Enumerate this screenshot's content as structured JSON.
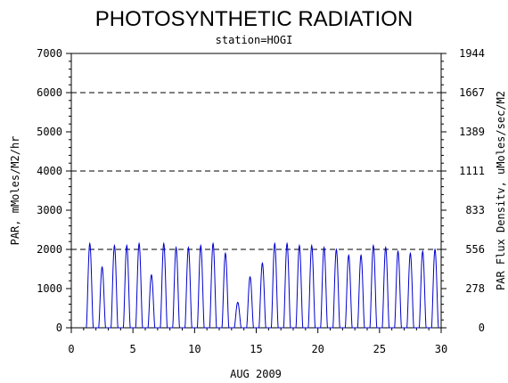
{
  "chart_data": {
    "type": "line",
    "title": "PHOTOSYNTHETIC RADIATION",
    "subtitle": "station=HOGI",
    "xlabel": "AUG 2009",
    "ylabel": "PAR, mMoles/M2/hr",
    "y2label": "PAR Flux Densitv, uMoles/sec/M2",
    "xlim": [
      0,
      30
    ],
    "ylim": [
      0,
      7000
    ],
    "x_ticks": [
      "0",
      "5",
      "10",
      "15",
      "20",
      "25",
      "30"
    ],
    "y_ticks": [
      "0",
      "1000",
      "2000",
      "3000",
      "4000",
      "5000",
      "6000",
      "7000"
    ],
    "y2_ticks": [
      "0",
      "278",
      "556",
      "833",
      "1111",
      "1389",
      "1667",
      "1944"
    ],
    "gridlines_y": [
      2000,
      4000,
      6000
    ],
    "series_color": "#0000cc",
    "series": [
      {
        "daily_peaks": [
          {
            "day": 1,
            "peak": 2150
          },
          {
            "day": 2,
            "peak": 1550
          },
          {
            "day": 3,
            "peak": 2100
          },
          {
            "day": 4,
            "peak": 2100
          },
          {
            "day": 5,
            "peak": 2150
          },
          {
            "day": 6,
            "peak": 1350
          },
          {
            "day": 7,
            "peak": 2150
          },
          {
            "day": 8,
            "peak": 2050
          },
          {
            "day": 9,
            "peak": 2050
          },
          {
            "day": 10,
            "peak": 2100
          },
          {
            "day": 11,
            "peak": 2150
          },
          {
            "day": 12,
            "peak": 1900
          },
          {
            "day": 13,
            "peak": 650
          },
          {
            "day": 14,
            "peak": 1300
          },
          {
            "day": 15,
            "peak": 1650
          },
          {
            "day": 16,
            "peak": 2150
          },
          {
            "day": 17,
            "peak": 2150
          },
          {
            "day": 18,
            "peak": 2100
          },
          {
            "day": 19,
            "peak": 2100
          },
          {
            "day": 20,
            "peak": 2050
          },
          {
            "day": 21,
            "peak": 2000
          },
          {
            "day": 22,
            "peak": 1850
          },
          {
            "day": 23,
            "peak": 1850
          },
          {
            "day": 24,
            "peak": 2100
          },
          {
            "day": 25,
            "peak": 2050
          },
          {
            "day": 26,
            "peak": 1950
          },
          {
            "day": 27,
            "peak": 1900
          },
          {
            "day": 28,
            "peak": 1950
          },
          {
            "day": 29,
            "peak": 2000
          }
        ]
      }
    ]
  }
}
